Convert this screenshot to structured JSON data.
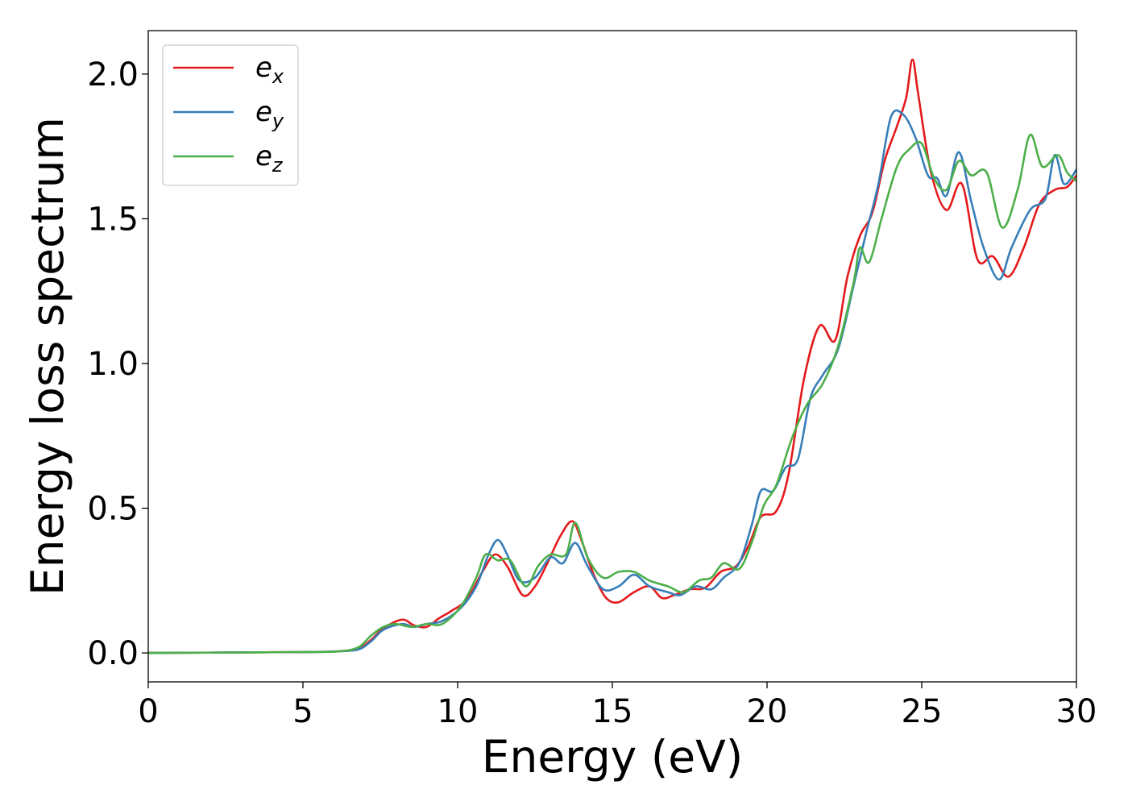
{
  "chart_data": {
    "type": "line",
    "title": "",
    "xlabel": "Energy (eV)",
    "ylabel": "Energy loss spectrum",
    "xlim": [
      0,
      30
    ],
    "ylim": [
      -0.1,
      2.15
    ],
    "xticks": [
      0,
      5,
      10,
      15,
      20,
      25,
      30
    ],
    "xtick_labels": [
      "0",
      "5",
      "10",
      "15",
      "20",
      "25",
      "30"
    ],
    "yticks": [
      0.0,
      0.5,
      1.0,
      1.5,
      2.0
    ],
    "ytick_labels": [
      "0.0",
      "0.5",
      "1.0",
      "1.5",
      "2.0"
    ],
    "grid": false,
    "legend_position": "top-left",
    "series": [
      {
        "name": "e",
        "subscript": "x",
        "color": "#e41a1c",
        "points": [
          [
            0,
            0
          ],
          [
            5,
            0.003
          ],
          [
            6.2,
            0.006
          ],
          [
            6.8,
            0.015
          ],
          [
            7.2,
            0.045
          ],
          [
            7.6,
            0.085
          ],
          [
            8.2,
            0.115
          ],
          [
            8.6,
            0.095
          ],
          [
            9,
            0.09
          ],
          [
            9.4,
            0.12
          ],
          [
            9.8,
            0.145
          ],
          [
            10.3,
            0.185
          ],
          [
            10.8,
            0.28
          ],
          [
            11.2,
            0.34
          ],
          [
            11.6,
            0.3
          ],
          [
            12.1,
            0.2
          ],
          [
            12.5,
            0.23
          ],
          [
            12.9,
            0.31
          ],
          [
            13.3,
            0.4
          ],
          [
            13.7,
            0.455
          ],
          [
            14,
            0.39
          ],
          [
            14.4,
            0.27
          ],
          [
            14.8,
            0.19
          ],
          [
            15.2,
            0.175
          ],
          [
            15.7,
            0.21
          ],
          [
            16.2,
            0.23
          ],
          [
            16.6,
            0.19
          ],
          [
            17,
            0.2
          ],
          [
            17.5,
            0.22
          ],
          [
            18,
            0.225
          ],
          [
            18.5,
            0.28
          ],
          [
            19,
            0.3
          ],
          [
            19.4,
            0.37
          ],
          [
            19.8,
            0.47
          ],
          [
            20.3,
            0.49
          ],
          [
            20.7,
            0.62
          ],
          [
            21.2,
            0.95
          ],
          [
            21.7,
            1.13
          ],
          [
            22.2,
            1.08
          ],
          [
            22.6,
            1.3
          ],
          [
            23,
            1.44
          ],
          [
            23.4,
            1.52
          ],
          [
            23.8,
            1.7
          ],
          [
            24.2,
            1.82
          ],
          [
            24.5,
            1.92
          ],
          [
            24.7,
            2.05
          ],
          [
            24.9,
            1.92
          ],
          [
            25.3,
            1.66
          ],
          [
            25.8,
            1.53
          ],
          [
            26.3,
            1.62
          ],
          [
            26.8,
            1.36
          ],
          [
            27.3,
            1.37
          ],
          [
            27.8,
            1.3
          ],
          [
            28.3,
            1.4
          ],
          [
            28.8,
            1.55
          ],
          [
            29.3,
            1.6
          ],
          [
            29.7,
            1.61
          ],
          [
            30,
            1.65
          ]
        ]
      },
      {
        "name": "e",
        "subscript": "y",
        "color": "#377eb8",
        "points": [
          [
            0,
            0
          ],
          [
            5,
            0.003
          ],
          [
            6.2,
            0.006
          ],
          [
            6.8,
            0.012
          ],
          [
            7.2,
            0.04
          ],
          [
            7.6,
            0.08
          ],
          [
            8.2,
            0.1
          ],
          [
            8.6,
            0.09
          ],
          [
            9,
            0.1
          ],
          [
            9.5,
            0.11
          ],
          [
            10.1,
            0.155
          ],
          [
            10.6,
            0.23
          ],
          [
            11,
            0.34
          ],
          [
            11.3,
            0.39
          ],
          [
            11.6,
            0.34
          ],
          [
            12,
            0.25
          ],
          [
            12.5,
            0.26
          ],
          [
            13,
            0.33
          ],
          [
            13.4,
            0.31
          ],
          [
            13.8,
            0.38
          ],
          [
            14.2,
            0.3
          ],
          [
            14.7,
            0.22
          ],
          [
            15.2,
            0.23
          ],
          [
            15.7,
            0.27
          ],
          [
            16.2,
            0.23
          ],
          [
            16.8,
            0.21
          ],
          [
            17.2,
            0.2
          ],
          [
            17.7,
            0.23
          ],
          [
            18.2,
            0.22
          ],
          [
            18.6,
            0.26
          ],
          [
            19.1,
            0.31
          ],
          [
            19.5,
            0.44
          ],
          [
            19.8,
            0.56
          ],
          [
            20.2,
            0.56
          ],
          [
            20.6,
            0.64
          ],
          [
            21,
            0.67
          ],
          [
            21.4,
            0.88
          ],
          [
            21.8,
            0.96
          ],
          [
            22.3,
            1.05
          ],
          [
            22.8,
            1.27
          ],
          [
            23.2,
            1.45
          ],
          [
            23.6,
            1.62
          ],
          [
            24,
            1.85
          ],
          [
            24.4,
            1.86
          ],
          [
            24.8,
            1.78
          ],
          [
            25.2,
            1.65
          ],
          [
            25.5,
            1.64
          ],
          [
            25.8,
            1.58
          ],
          [
            26.2,
            1.73
          ],
          [
            26.6,
            1.56
          ],
          [
            27,
            1.4
          ],
          [
            27.5,
            1.29
          ],
          [
            27.9,
            1.4
          ],
          [
            28.5,
            1.53
          ],
          [
            29,
            1.57
          ],
          [
            29.3,
            1.72
          ],
          [
            29.6,
            1.62
          ],
          [
            30,
            1.67
          ]
        ]
      },
      {
        "name": "e",
        "subscript": "z",
        "color": "#4daf4a",
        "points": [
          [
            0,
            0
          ],
          [
            5,
            0.003
          ],
          [
            6.2,
            0.006
          ],
          [
            6.8,
            0.02
          ],
          [
            7.2,
            0.06
          ],
          [
            7.6,
            0.09
          ],
          [
            8,
            0.1
          ],
          [
            8.5,
            0.09
          ],
          [
            9,
            0.1
          ],
          [
            9.5,
            0.1
          ],
          [
            10.1,
            0.16
          ],
          [
            10.6,
            0.26
          ],
          [
            10.9,
            0.34
          ],
          [
            11.3,
            0.32
          ],
          [
            11.7,
            0.32
          ],
          [
            12.2,
            0.23
          ],
          [
            12.6,
            0.3
          ],
          [
            13,
            0.34
          ],
          [
            13.5,
            0.34
          ],
          [
            13.8,
            0.45
          ],
          [
            14.2,
            0.33
          ],
          [
            14.7,
            0.26
          ],
          [
            15.2,
            0.28
          ],
          [
            15.7,
            0.28
          ],
          [
            16.2,
            0.25
          ],
          [
            16.8,
            0.23
          ],
          [
            17.3,
            0.21
          ],
          [
            17.8,
            0.25
          ],
          [
            18.2,
            0.26
          ],
          [
            18.6,
            0.31
          ],
          [
            19.1,
            0.29
          ],
          [
            19.5,
            0.38
          ],
          [
            19.9,
            0.51
          ],
          [
            20.3,
            0.58
          ],
          [
            20.8,
            0.74
          ],
          [
            21.3,
            0.86
          ],
          [
            21.8,
            0.93
          ],
          [
            22.3,
            1.06
          ],
          [
            22.8,
            1.28
          ],
          [
            23,
            1.4
          ],
          [
            23.3,
            1.35
          ],
          [
            23.7,
            1.5
          ],
          [
            24.2,
            1.68
          ],
          [
            24.6,
            1.74
          ],
          [
            25,
            1.76
          ],
          [
            25.4,
            1.64
          ],
          [
            25.8,
            1.6
          ],
          [
            26.2,
            1.7
          ],
          [
            26.6,
            1.65
          ],
          [
            27.1,
            1.66
          ],
          [
            27.6,
            1.47
          ],
          [
            28.1,
            1.6
          ],
          [
            28.5,
            1.79
          ],
          [
            28.9,
            1.68
          ],
          [
            29.4,
            1.72
          ],
          [
            29.7,
            1.66
          ],
          [
            30,
            1.63
          ]
        ]
      }
    ]
  }
}
